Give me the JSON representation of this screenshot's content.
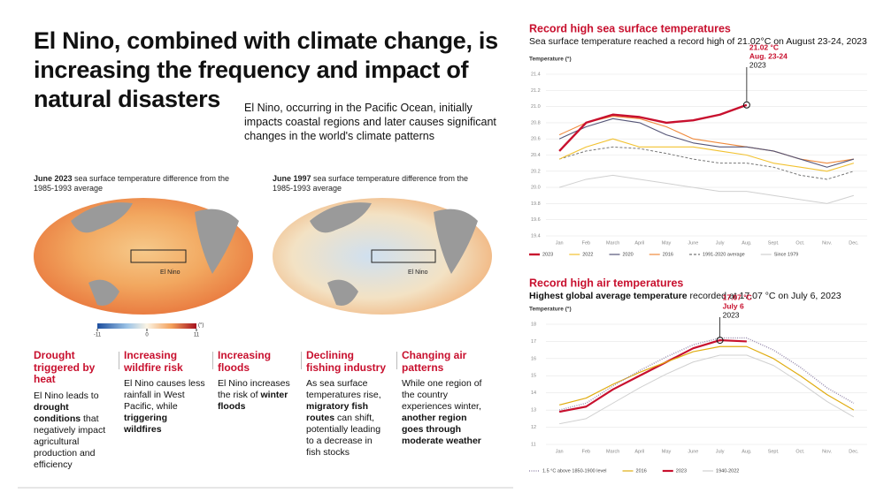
{
  "header": {
    "title": "El Nino, combined with climate change, is increasing the frequency and impact of natural disasters",
    "subtitle": "El Nino, occurring in the Pacific Ocean, initially impacts coastal regions and later causes significant changes in the world's climate patterns"
  },
  "maps": [
    {
      "caption": [
        {
          "text": "June 2023",
          "bold": true
        },
        {
          "text": " sea surface temperature difference from the 1985-1993 average"
        }
      ],
      "label": "El Nino"
    },
    {
      "caption": [
        {
          "text": "June 1997",
          "bold": true
        },
        {
          "text": " sea surface temperature difference from the 1985-1993 average"
        }
      ],
      "label": "El Nino"
    }
  ],
  "colorbar": {
    "ticks": [
      -11,
      0,
      11
    ],
    "unit": "(°)"
  },
  "impacts": [
    {
      "heading": "Drought triggered by heat",
      "body": [
        {
          "text": "El Nino leads to "
        },
        {
          "text": "drought conditions",
          "bold": true
        },
        {
          "text": " that negatively impact agricultural production and efficiency"
        }
      ]
    },
    {
      "heading": "Increasing wildfire risk",
      "body": [
        {
          "text": "El Nino causes less rainfall in West Pacific, while "
        },
        {
          "text": "triggering wildfires",
          "bold": true
        }
      ]
    },
    {
      "heading": "Increasing floods",
      "body": [
        {
          "text": "El Nino increases the risk of "
        },
        {
          "text": "winter floods",
          "bold": true
        }
      ]
    },
    {
      "heading": "Declining fishing industry",
      "body": [
        {
          "text": "As sea surface temperatures rise, "
        },
        {
          "text": "migratory fish routes",
          "bold": true
        },
        {
          "text": " can shift, potentially leading to a decrease in fish stocks"
        }
      ]
    },
    {
      "heading": "Changing air patterns",
      "body": [
        {
          "text": "While one region of the country experiences winter, "
        },
        {
          "text": "another region goes through moderate weather",
          "bold": true
        }
      ]
    }
  ],
  "chart_data": [
    {
      "type": "line",
      "title": "Record high sea surface temperatures",
      "subtitle": [
        {
          "text": "Sea surface temperature reached a record high of 21.02°C on August 23-24, 2023"
        }
      ],
      "y_label": "Temperature (°)",
      "categories": [
        "Jan",
        "Feb",
        "March",
        "April",
        "May",
        "June",
        "July",
        "Aug.",
        "Sept.",
        "Oct.",
        "Nov.",
        "Dec."
      ],
      "ylim": [
        19.4,
        21.4
      ],
      "yticks": [
        19.4,
        19.6,
        19.8,
        {
          "value": 20,
          "label": "20.0"
        },
        20.2,
        20.4,
        20.6,
        20.8,
        {
          "value": 21,
          "label": "21.0"
        },
        21.2,
        21.4
      ],
      "grid": true,
      "series": [
        {
          "name": "2023",
          "color": "#c8102e",
          "width": 2.4,
          "values": [
            20.45,
            20.8,
            20.9,
            20.87,
            20.8,
            20.83,
            20.9,
            21.02,
            null,
            null,
            null,
            null
          ]
        },
        {
          "name": "2022",
          "color": "#f2c230",
          "width": 1.1,
          "values": [
            20.35,
            20.5,
            20.6,
            20.5,
            20.5,
            20.5,
            20.45,
            20.4,
            20.3,
            20.25,
            20.2,
            20.3
          ]
        },
        {
          "name": "2020",
          "color": "#555577",
          "width": 1.1,
          "values": [
            20.6,
            20.75,
            20.85,
            20.8,
            20.65,
            20.55,
            20.5,
            20.5,
            20.45,
            20.35,
            20.25,
            20.35
          ]
        },
        {
          "name": "2016",
          "color": "#f08a3c",
          "width": 1.1,
          "values": [
            20.65,
            20.8,
            20.88,
            20.85,
            20.75,
            20.6,
            20.55,
            20.5,
            20.45,
            20.35,
            20.3,
            20.35
          ]
        },
        {
          "name": "1991-2020 average",
          "color": "#777777",
          "width": 1,
          "dash": "dashed",
          "values": [
            20.35,
            20.45,
            20.5,
            20.48,
            20.42,
            20.35,
            20.3,
            20.3,
            20.25,
            20.15,
            20.1,
            20.2
          ]
        },
        {
          "name": "Since 1979",
          "color": "#d0d0d0",
          "width": 1,
          "values": [
            20.0,
            20.1,
            20.15,
            20.1,
            20.05,
            20.0,
            19.95,
            19.95,
            19.9,
            19.85,
            19.8,
            19.9
          ]
        }
      ],
      "annotation": [
        "21.02 °C",
        "Aug. 23-24",
        "2023"
      ]
    },
    {
      "type": "line",
      "title": "Record high air temperatures",
      "subtitle": [
        {
          "text": "Highest global average temperature",
          "bold": true
        },
        {
          "text": " recorded at 17.07 °C on July 6, 2023"
        }
      ],
      "y_label": "Temperature (°)",
      "categories": [
        "Jan",
        "Feb",
        "March",
        "April",
        "May",
        "June",
        "July",
        "Aug.",
        "Sept.",
        "Oct.",
        "Nov.",
        "Dec."
      ],
      "ylim": [
        11,
        18
      ],
      "yticks": [
        11,
        12,
        13,
        14,
        15,
        16,
        17,
        18
      ],
      "grid": true,
      "series": [
        {
          "name": "1.5 °C above 1850-1900 level",
          "color": "#9a8fb0",
          "width": 1.5,
          "dash": "dotted",
          "values": [
            13.0,
            13.4,
            14.4,
            15.3,
            16.1,
            16.8,
            17.2,
            17.2,
            16.5,
            15.5,
            14.3,
            13.4
          ]
        },
        {
          "name": "2016",
          "color": "#e0ac10",
          "width": 1.2,
          "values": [
            13.3,
            13.7,
            14.5,
            15.2,
            15.8,
            16.4,
            16.7,
            16.7,
            16.0,
            15.0,
            13.9,
            13.0
          ]
        },
        {
          "name": "2023",
          "color": "#c8102e",
          "width": 2.2,
          "values": [
            12.9,
            13.2,
            14.2,
            15.0,
            15.8,
            16.6,
            17.07,
            17.0,
            null,
            null,
            null,
            null
          ]
        },
        {
          "name": "1940-2022",
          "color": "#d0d0d0",
          "width": 1,
          "values": [
            12.2,
            12.5,
            13.4,
            14.3,
            15.1,
            15.8,
            16.2,
            16.2,
            15.6,
            14.6,
            13.5,
            12.6
          ]
        }
      ],
      "annotation": [
        "17.07 °C",
        "July 6",
        "2023"
      ],
      "annotation_series": 2,
      "annotation_index": 6
    }
  ]
}
